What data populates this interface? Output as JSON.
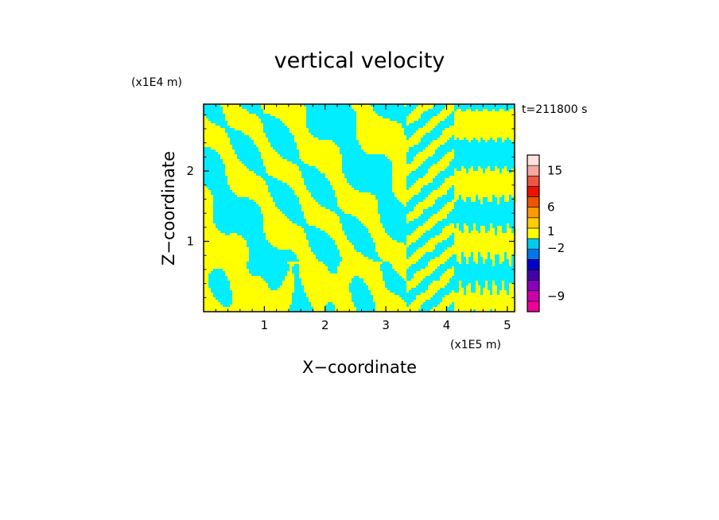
{
  "chart_data": {
    "type": "heatmap",
    "title": "vertical velocity",
    "xlabel": "X−coordinate",
    "ylabel": "Z−coordinate",
    "x_unit": "(x1E5 m)",
    "y_unit": "(x1E4 m)",
    "time_label": "t=211800 s",
    "xlim": [
      0,
      5.12
    ],
    "ylim": [
      0,
      2.95
    ],
    "x_ticks": [
      {
        "value": 1,
        "label": "1"
      },
      {
        "value": 2,
        "label": "2"
      },
      {
        "value": 3,
        "label": "3"
      },
      {
        "value": 4,
        "label": "4"
      },
      {
        "value": 5,
        "label": "5"
      }
    ],
    "y_ticks": [
      {
        "value": 1,
        "label": "1"
      },
      {
        "value": 2,
        "label": "2"
      }
    ],
    "field_colors": {
      "positive": "#ffff00",
      "negative": "#00eeff"
    },
    "colorbar": {
      "levels": [
        {
          "color": "#ee0099"
        },
        {
          "color": "#cc00aa"
        },
        {
          "color": "#8800bb"
        },
        {
          "color": "#4400aa"
        },
        {
          "color": "#0000cc"
        },
        {
          "color": "#0077ee"
        },
        {
          "color": "#00ccee"
        },
        {
          "color": "#ffff00"
        },
        {
          "color": "#ffcc00"
        },
        {
          "color": "#ff9900"
        },
        {
          "color": "#ee5500"
        },
        {
          "color": "#ee1100"
        },
        {
          "color": "#ee5544"
        },
        {
          "color": "#f4a8a0"
        },
        {
          "color": "#fde2dc"
        }
      ],
      "labels": [
        {
          "text": "15",
          "level": 13.5
        },
        {
          "text": "6",
          "level": 10
        },
        {
          "text": "1",
          "level": 7.7
        },
        {
          "text": "−2",
          "level": 6.1
        },
        {
          "text": "−9",
          "level": 1.5
        }
      ]
    }
  }
}
